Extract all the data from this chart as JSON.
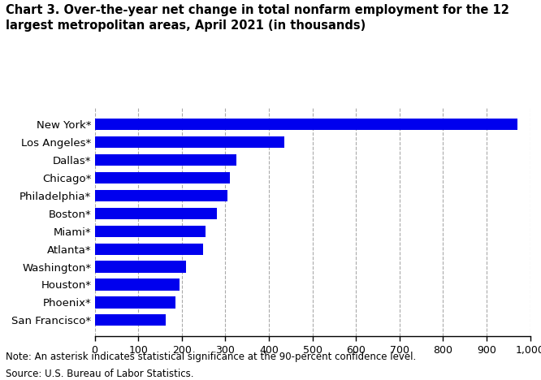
{
  "categories": [
    "New York*",
    "Los Angeles*",
    "Dallas*",
    "Chicago*",
    "Philadelphia*",
    "Boston*",
    "Miami*",
    "Atlanta*",
    "Washington*",
    "Houston*",
    "Phoenix*",
    "San Francisco*"
  ],
  "values": [
    970,
    435,
    325,
    310,
    305,
    280,
    255,
    248,
    210,
    195,
    185,
    163
  ],
  "bar_color": "#0000EE",
  "title": "Chart 3. Over-the-year net change in total nonfarm employment for the 12\nlargest metropolitan areas, April 2021 (in thousands)",
  "xlim": [
    0,
    1000
  ],
  "xticks": [
    0,
    100,
    200,
    300,
    400,
    500,
    600,
    700,
    800,
    900,
    1000
  ],
  "xtick_labels": [
    "0",
    "100",
    "200",
    "300",
    "400",
    "500",
    "600",
    "700",
    "800",
    "900",
    "1,000"
  ],
  "note": "Note: An asterisk indicates statistical significance at the 90-percent confidence level.",
  "source": "Source: U.S. Bureau of Labor Statistics.",
  "background_color": "#ffffff",
  "grid_color": "#aaaaaa",
  "title_fontsize": 10.5,
  "label_fontsize": 9.5,
  "tick_fontsize": 9,
  "note_fontsize": 8.5
}
